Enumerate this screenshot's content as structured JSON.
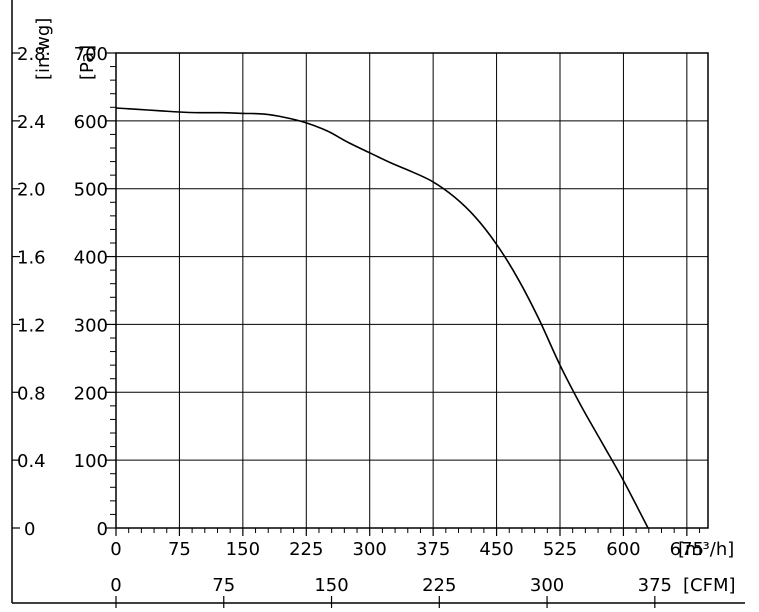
{
  "chart_data": {
    "type": "line",
    "x_unit_primary": "[m³/h]",
    "x_unit_secondary": "[CFM]",
    "y_unit_primary": "[Pa]",
    "y_unit_secondary": "[in.wg]",
    "xlim": [
      0,
      700
    ],
    "ylim": [
      0,
      700
    ],
    "x_ticks": [
      "0",
      "75",
      "150",
      "225",
      "300",
      "375",
      "450",
      "525",
      "600",
      "675"
    ],
    "x_ticks_secondary": [
      "0",
      "75",
      "150",
      "225",
      "300",
      "375"
    ],
    "y_ticks": [
      "0",
      "100",
      "200",
      "300",
      "400",
      "500",
      "600",
      "700"
    ],
    "y_ticks_secondary": [
      "0",
      "0.4",
      "0.8",
      "1.2",
      "1.6",
      "2.0",
      "2.4",
      "2.8"
    ],
    "grid": true,
    "series": [
      {
        "x": [
          0,
          25,
          50,
          75,
          100,
          125,
          150,
          175,
          200,
          225,
          250,
          275,
          300,
          325,
          350,
          375,
          400,
          425,
          450,
          475,
          500,
          525,
          550,
          575,
          600,
          629
        ],
        "y": [
          619,
          617,
          615,
          613,
          612,
          612,
          611,
          610,
          605,
          597,
          585,
          568,
          553,
          538,
          525,
          510,
          488,
          458,
          418,
          368,
          308,
          240,
          180,
          125,
          70,
          0
        ]
      }
    ]
  }
}
